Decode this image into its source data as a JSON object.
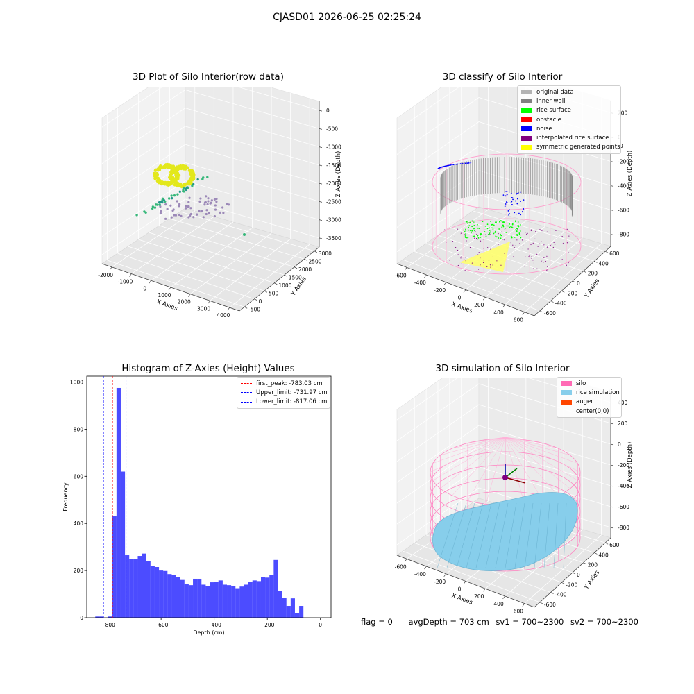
{
  "figure": {
    "suptitle": "CJASD01 2026-06-25 02:25:24",
    "footer": {
      "flag": "flag = 0",
      "avg_depth": "avgDepth = 703 cm",
      "sv1": "sv1 = 700~2300",
      "sv2": "sv2 = 700~2300"
    }
  },
  "chart_data": [
    {
      "type": "scatter",
      "subtype": "3d",
      "title": "3D Plot of Silo Interior(row data)",
      "xlabel": "X Axies",
      "ylabel": "Y Axies",
      "zlabel": "Z Axies (Depth)",
      "xticks": [
        "-2000",
        "-1000",
        "0",
        "1000",
        "2000",
        "3000",
        "4000"
      ],
      "yticks": [
        "-500",
        "0",
        "500",
        "1000",
        "1500",
        "2000",
        "2500",
        "3000"
      ],
      "zticks": [
        "0",
        "-500",
        "-1000",
        "-1500",
        "-2000",
        "-2500",
        "-3000",
        "-3500"
      ],
      "colormap": "viridis",
      "colors": {
        "yellow": "#e3e81c",
        "green": "#35b779",
        "teal": "#23968b",
        "purple": "#9c89b8"
      }
    },
    {
      "type": "scatter",
      "subtype": "3d",
      "title": "3D classify of Silo Interior",
      "xlabel": "X Axies",
      "ylabel": "Y Axies",
      "zlabel": "Z Axies (Depth)",
      "xticks": [
        "-600",
        "-400",
        "-200",
        "0",
        "200",
        "400",
        "600"
      ],
      "yticks": [
        "-600",
        "-400",
        "-200",
        "0",
        "200",
        "400",
        "600"
      ],
      "zticks": [
        "200",
        "0",
        "-200",
        "-400",
        "-600",
        "-800"
      ],
      "legend": [
        {
          "label": "original data",
          "color": "#b3b3b3"
        },
        {
          "label": "inner wall",
          "color": "#808080"
        },
        {
          "label": "rice surface",
          "color": "#00ff00"
        },
        {
          "label": "obstacle",
          "color": "#ff0000"
        },
        {
          "label": "noise",
          "color": "#0000ff"
        },
        {
          "label": "interpolated rice surface",
          "color": "#800080"
        },
        {
          "label": "symmetric generated points",
          "color": "#ffff00"
        }
      ],
      "ztick_partial": "0"
    },
    {
      "type": "bar",
      "subtype": "histogram",
      "title": "Histogram of Z-Axies (Height) Values",
      "xlabel": "Depth (cm)",
      "ylabel": "Frequency",
      "xlim": [
        -880,
        40
      ],
      "ylim": [
        0,
        1025
      ],
      "xticks": [
        -800,
        -600,
        -400,
        -200,
        0
      ],
      "xtick_labels": [
        "−800",
        "−600",
        "−400",
        "−200",
        "0"
      ],
      "yticks": [
        0,
        200,
        400,
        600,
        800,
        1000
      ],
      "bin_edges_start": -848,
      "bin_width": 16,
      "values": [
        5,
        5,
        0,
        5,
        430,
        975,
        620,
        265,
        248,
        250,
        262,
        272,
        240,
        218,
        215,
        200,
        198,
        185,
        180,
        172,
        160,
        142,
        138,
        165,
        165,
        140,
        135,
        150,
        152,
        158,
        140,
        138,
        135,
        125,
        132,
        140,
        152,
        158,
        155,
        172,
        170,
        182,
        245,
        112,
        85,
        50,
        82,
        20,
        50
      ],
      "bar_color": "#0000ff",
      "vlines": [
        {
          "label": "first_peak: -783.03 cm",
          "x": -783.03,
          "color": "#ff0000"
        },
        {
          "label": "Upper_limit: -731.97 cm",
          "x": -731.97,
          "color": "#0000ff"
        },
        {
          "label": "Lower_limit: -817.06 cm",
          "x": -817.06,
          "color": "#0000ff"
        }
      ]
    },
    {
      "type": "other",
      "subtype": "3d-surface",
      "title": "3D simulation of Silo Interior",
      "xlabel": "X Axies",
      "ylabel": "Y Axies",
      "zlabel": "Z Axies (Depth)",
      "xticks": [
        "-600",
        "-400",
        "-200",
        "0",
        "200",
        "400",
        "600"
      ],
      "yticks": [
        "-600",
        "-400",
        "-200",
        "0",
        "200",
        "400",
        "600"
      ],
      "zticks": [
        "400",
        "200",
        "0",
        "-200",
        "-400",
        "-600",
        "-800"
      ],
      "legend": [
        {
          "label": "silo",
          "color": "#ff69b4"
        },
        {
          "label": "rice simulation",
          "color": "#87ceeb"
        },
        {
          "label": "auger",
          "color": "#ff4500"
        },
        {
          "label": "center(0,0)",
          "color": ""
        }
      ]
    }
  ]
}
